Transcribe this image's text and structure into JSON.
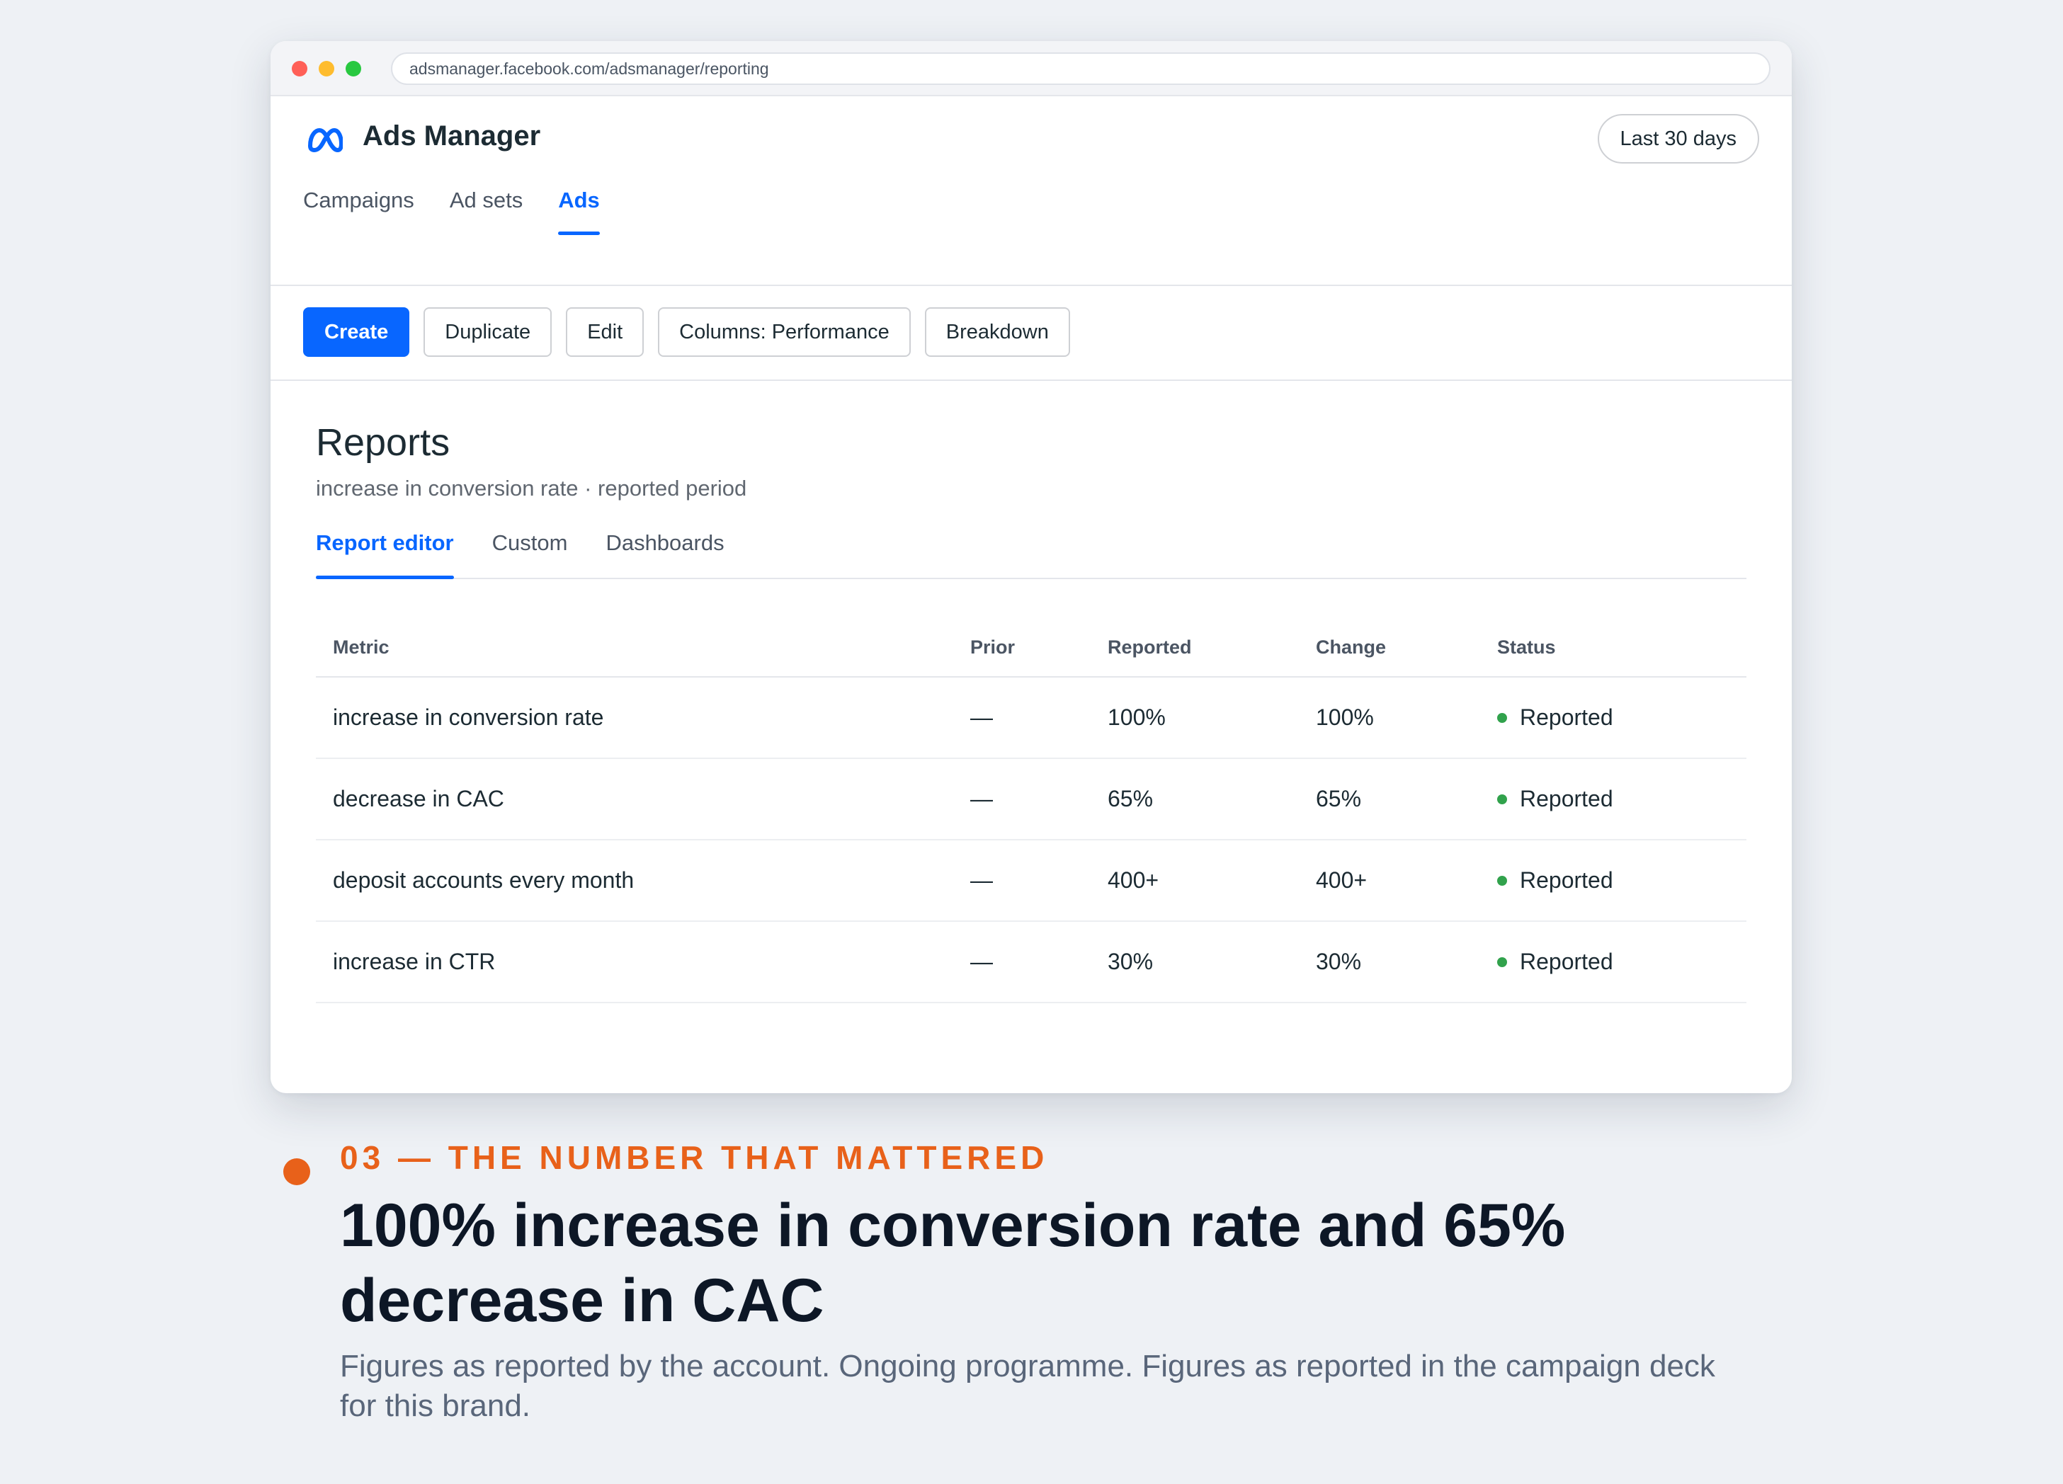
{
  "browser": {
    "url": "adsmanager.facebook.com/adsmanager/reporting"
  },
  "app": {
    "logo_icon": "meta-infinity-icon",
    "title": "Ads Manager",
    "date_range": "Last 30 days",
    "nav_tabs": [
      {
        "label": "Campaigns",
        "active": false
      },
      {
        "label": "Ad sets",
        "active": false
      },
      {
        "label": "Ads",
        "active": true
      }
    ],
    "toolbar": {
      "create": "Create",
      "duplicate": "Duplicate",
      "edit": "Edit",
      "columns": "Columns: Performance",
      "breakdown": "Breakdown"
    },
    "accent_color": "#0866ff"
  },
  "reports": {
    "title": "Reports",
    "subtitle": "increase in conversion rate · reported period",
    "tabs": [
      {
        "label": "Report editor",
        "active": true
      },
      {
        "label": "Custom",
        "active": false
      },
      {
        "label": "Dashboards",
        "active": false
      }
    ],
    "columns": [
      "Metric",
      "Prior",
      "Reported",
      "Change",
      "Status"
    ],
    "rows": [
      {
        "metric": "increase in conversion rate",
        "prior": "—",
        "reported": "100%",
        "change": "100%",
        "status": "Reported"
      },
      {
        "metric": "decrease in CAC",
        "prior": "—",
        "reported": "65%",
        "change": "65%",
        "status": "Reported"
      },
      {
        "metric": "deposit accounts every month",
        "prior": "—",
        "reported": "400+",
        "change": "400+",
        "status": "Reported"
      },
      {
        "metric": "increase in CTR",
        "prior": "—",
        "reported": "30%",
        "change": "30%",
        "status": "Reported"
      }
    ],
    "status_color": "#31a24c"
  },
  "caption": {
    "eyebrow": "03 — THE NUMBER THAT MATTERED",
    "headline": "100% increase in conversion rate and 65% decrease in CAC",
    "footnote": "Figures as reported by the account. Ongoing programme. Figures as reported in the campaign deck for this brand.",
    "accent_color": "#e8611a"
  }
}
